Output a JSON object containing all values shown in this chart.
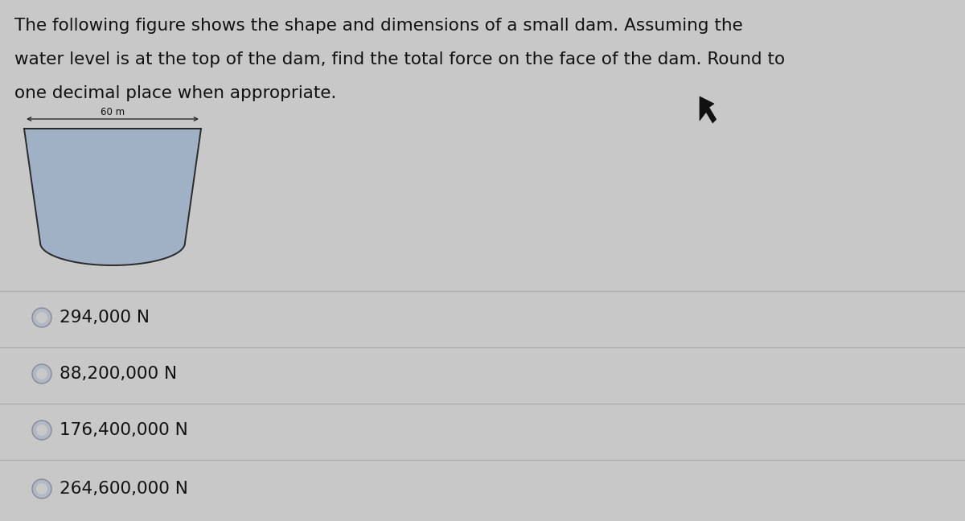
{
  "background_color": "#c8c8c8",
  "question_text_line1": "The following figure shows the shape and dimensions of a small dam. Assuming the",
  "question_text_line2": "water level is at the top of the dam, find the total force on the face of the dam. Round to",
  "question_text_line3": "one decimal place when appropriate.",
  "question_fontsize": 15.5,
  "dam_label": "60 m",
  "dam_label_fontsize": 8.5,
  "dam_fill_color": "#a0b0c5",
  "dam_edge_color": "#2a2a2a",
  "dam_lw": 1.4,
  "options": [
    "294,000 N",
    "88,200,000 N",
    "176,400,000 N",
    "264,600,000 N"
  ],
  "option_fontsize": 15.5,
  "radio_outer_color": "#b0b8c4",
  "radio_inner_color": "#c8c8c8",
  "divider_color": "#aaaaaa",
  "cursor_color": "#111111",
  "text_color": "#111111"
}
